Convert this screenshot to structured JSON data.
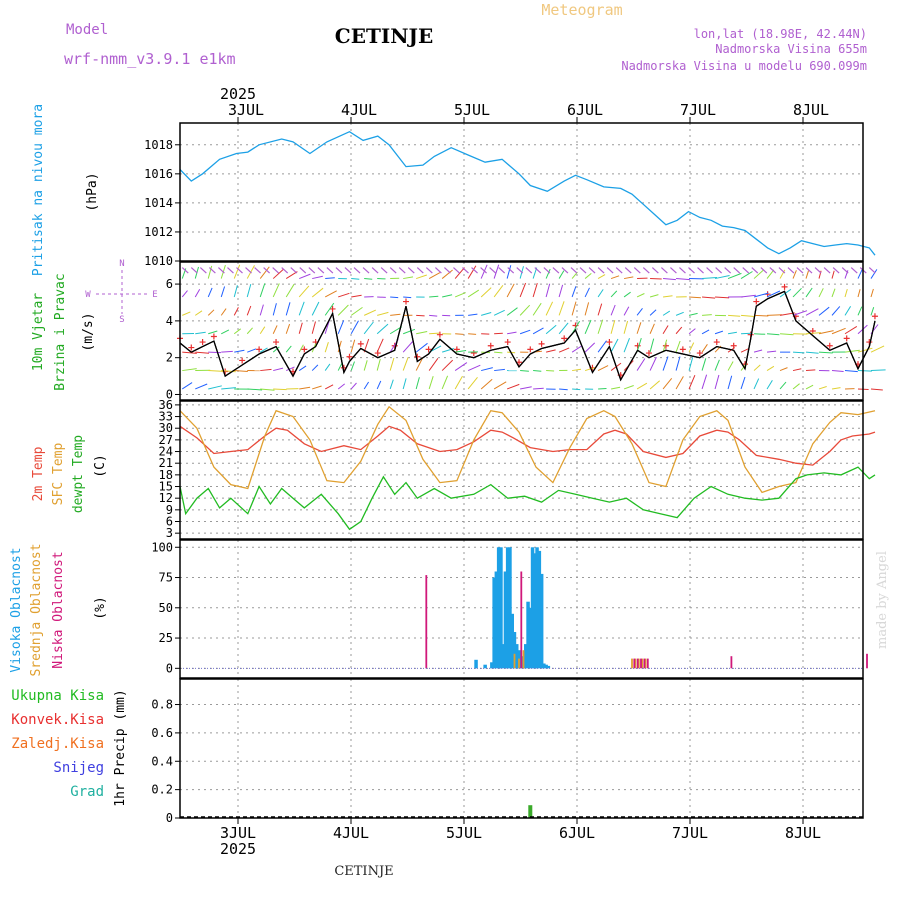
{
  "header": {
    "model_label": "Model",
    "model_name": "wrf-nmm_v3.9.1 e1km",
    "station": "CETINJE",
    "product": "Meteogram",
    "location": "lon,lat (18.98E, 42.44N)",
    "elevation": "Nadmorska Visina 655m",
    "model_elevation": "Nadmorska Visina u modelu 690.099m",
    "year_top": "2025",
    "year_bottom": "2025",
    "footer_station": "CETINJE",
    "credit": "made by Angel"
  },
  "days": [
    "3JUL",
    "4JUL",
    "5JUL",
    "6JUL",
    "7JUL",
    "8JUL"
  ],
  "colors": {
    "pressure": "#1ca0e6",
    "wind_black": "#000000",
    "wind_red": "#e83030",
    "temp2m": "#e84a3a",
    "sfc": "#e0a030",
    "dew": "#22bb22",
    "high_cloud": "#1ca0e6",
    "mid_cloud": "#e0a030",
    "low_cloud": "#d0187a",
    "precip": "#3aaa2a",
    "purple": "#b060d0"
  },
  "panels": {
    "pressure": {
      "label": "Pritisak na nivou mora",
      "unit": "(hPa)",
      "ticks": [
        "1010",
        "1012",
        "1014",
        "1016",
        "1018"
      ]
    },
    "wind": {
      "label1": "10m Vjetar",
      "label2": "Brzina i Pravac",
      "unit": "(m/s)",
      "compass_n": "N",
      "compass_s": "S",
      "compass_w": "W",
      "compass_e": "E",
      "ticks": [
        "0",
        "2",
        "4",
        "6"
      ]
    },
    "temp": {
      "label1": "2m Temp",
      "label2": "SFC Temp",
      "label3": "dewpt Temp",
      "unit": "(C)",
      "ticks": [
        "3",
        "6",
        "9",
        "12",
        "15",
        "18",
        "21",
        "24",
        "27",
        "30",
        "33",
        "36"
      ]
    },
    "cloud": {
      "label1": "Visoka Oblacnost",
      "label2": "Srednja Oblacnost",
      "label3": "Niska Oblacnost",
      "unit": "(%)",
      "ticks": [
        "0",
        "25",
        "50",
        "75",
        "100"
      ]
    },
    "precip": {
      "label": "1hr Precip (mm)",
      "legend": [
        "Ukupna Kisa",
        "Konvek.Kisa",
        "Zaledj.Kisa",
        "Snijeg",
        "Grad"
      ],
      "legend_colors": [
        "#22bb22",
        "#e83030",
        "#f07020",
        "#4040e0",
        "#20b0a0"
      ],
      "ticks": [
        "0",
        "0.2",
        "0.4",
        "0.6",
        "0.8"
      ]
    }
  },
  "chart_data": [
    {
      "type": "line",
      "title": "Pritisak na nivou mora",
      "ylabel": "(hPa)",
      "ylim": [
        1010,
        1019.5
      ],
      "x_unit": "days since 2 JUL 2025 12:00",
      "series": [
        {
          "name": "Pritisak na nivou mora",
          "x": [
            0,
            0.1,
            0.2,
            0.35,
            0.5,
            0.6,
            0.7,
            0.9,
            1.0,
            1.15,
            1.3,
            1.5,
            1.62,
            1.75,
            1.85,
            2.0,
            2.15,
            2.25,
            2.4,
            2.55,
            2.7,
            2.85,
            3.0,
            3.1,
            3.25,
            3.4,
            3.5,
            3.6,
            3.75,
            3.9,
            4.0,
            4.1,
            4.2,
            4.3,
            4.4,
            4.5,
            4.6,
            4.7,
            4.8,
            4.9,
            5.0,
            5.1,
            5.2,
            5.3,
            5.4,
            5.5,
            5.6,
            5.7,
            5.8,
            5.9,
            6.0,
            6.1,
            6.15
          ],
          "y": [
            1016.3,
            1015.5,
            1016.0,
            1017.0,
            1017.4,
            1017.5,
            1018.0,
            1018.4,
            1018.2,
            1017.4,
            1018.2,
            1018.9,
            1018.3,
            1018.6,
            1018.0,
            1016.5,
            1016.6,
            1017.2,
            1017.8,
            1017.3,
            1016.8,
            1017.0,
            1016.0,
            1015.2,
            1014.8,
            1015.5,
            1015.9,
            1015.6,
            1015.1,
            1015.0,
            1014.6,
            1013.9,
            1013.2,
            1012.5,
            1012.8,
            1013.4,
            1013.0,
            1012.8,
            1012.4,
            1012.3,
            1012.1,
            1011.5,
            1010.9,
            1010.5,
            1010.9,
            1011.4,
            1011.2,
            1011.0,
            1011.1,
            1011.2,
            1011.1,
            1010.9,
            1010.4
          ]
        }
      ]
    },
    {
      "type": "line",
      "title": "10m Vjetar Brzina i Pravac",
      "ylabel": "(m/s)",
      "ylim": [
        -0.3,
        7.2
      ],
      "x_unit": "days since 2 JUL 2025 12:00",
      "series": [
        {
          "name": "Brzina",
          "x": [
            0,
            0.1,
            0.2,
            0.3,
            0.4,
            0.55,
            0.7,
            0.85,
            1.0,
            1.1,
            1.2,
            1.35,
            1.45,
            1.5,
            1.6,
            1.75,
            1.9,
            2.0,
            2.1,
            2.2,
            2.3,
            2.45,
            2.6,
            2.75,
            2.9,
            3.0,
            3.1,
            3.2,
            3.4,
            3.5,
            3.65,
            3.8,
            3.9,
            4.05,
            4.15,
            4.3,
            4.45,
            4.6,
            4.75,
            4.9,
            5.0,
            5.05,
            5.1,
            5.2,
            5.35,
            5.45,
            5.6,
            5.75,
            5.9,
            6.0,
            6.1,
            6.15
          ],
          "y": [
            2.8,
            2.3,
            2.6,
            2.9,
            1.0,
            1.6,
            2.2,
            2.6,
            1.0,
            2.2,
            2.6,
            4.4,
            1.2,
            1.8,
            2.5,
            2.0,
            2.4,
            4.8,
            1.8,
            2.2,
            3.0,
            2.2,
            2.0,
            2.4,
            2.6,
            1.5,
            2.2,
            2.5,
            2.8,
            3.5,
            1.2,
            2.6,
            0.8,
            2.4,
            2.0,
            2.4,
            2.2,
            2.0,
            2.6,
            2.4,
            1.4,
            3.0,
            4.8,
            5.2,
            5.6,
            4.0,
            3.2,
            2.4,
            2.8,
            1.4,
            2.6,
            4.0
          ]
        }
      ]
    },
    {
      "type": "line",
      "title": "2m Temp / SFC Temp / dewpt Temp",
      "ylabel": "(C)",
      "ylim": [
        1.5,
        37
      ],
      "x_unit": "days since 2 JUL 2025 12:00",
      "series": [
        {
          "name": "2m Temp",
          "x": [
            0,
            0.15,
            0.3,
            0.45,
            0.6,
            0.75,
            0.85,
            0.95,
            1.1,
            1.25,
            1.45,
            1.6,
            1.75,
            1.85,
            1.95,
            2.1,
            2.3,
            2.45,
            2.6,
            2.75,
            2.85,
            2.95,
            3.1,
            3.3,
            3.45,
            3.6,
            3.75,
            3.85,
            3.95,
            4.1,
            4.3,
            4.45,
            4.6,
            4.75,
            4.85,
            4.95,
            5.1,
            5.3,
            5.45,
            5.6,
            5.75,
            5.85,
            5.95,
            6.1,
            6.15
          ],
          "y": [
            30.5,
            27.5,
            23.5,
            24.0,
            24.5,
            28.0,
            30.0,
            29.5,
            26.0,
            24.0,
            25.5,
            24.5,
            28.0,
            30.5,
            29.5,
            26.0,
            24.0,
            24.5,
            26.5,
            29.5,
            29.0,
            27.5,
            25.0,
            24.0,
            24.5,
            24.5,
            28.5,
            29.5,
            28.5,
            24.0,
            22.5,
            23.5,
            28.0,
            29.5,
            29.0,
            27.0,
            23.0,
            22.0,
            21.0,
            20.5,
            24.0,
            27.0,
            28.0,
            28.5,
            29.0
          ]
        },
        {
          "name": "SFC Temp",
          "x": [
            0,
            0.15,
            0.3,
            0.45,
            0.6,
            0.75,
            0.85,
            1.0,
            1.15,
            1.3,
            1.45,
            1.6,
            1.75,
            1.85,
            2.0,
            2.15,
            2.3,
            2.45,
            2.6,
            2.75,
            2.85,
            3.0,
            3.15,
            3.3,
            3.45,
            3.6,
            3.75,
            3.85,
            4.0,
            4.15,
            4.3,
            4.45,
            4.6,
            4.75,
            4.85,
            5.0,
            5.15,
            5.3,
            5.45,
            5.6,
            5.75,
            5.85,
            6.0,
            6.15
          ],
          "y": [
            34.5,
            30.0,
            20.0,
            15.5,
            14.5,
            28.0,
            34.5,
            33.0,
            27.0,
            16.5,
            16.0,
            21.5,
            31.0,
            35.5,
            32.0,
            22.0,
            16.0,
            16.5,
            27.0,
            34.5,
            34.0,
            29.0,
            20.0,
            16.0,
            25.0,
            32.5,
            34.5,
            33.0,
            26.0,
            16.0,
            15.0,
            27.0,
            33.0,
            34.5,
            32.0,
            20.0,
            13.5,
            15.0,
            16.0,
            26.0,
            31.5,
            34.0,
            33.5,
            34.5
          ]
        },
        {
          "name": "dewpt Temp",
          "x": [
            0,
            0.05,
            0.15,
            0.25,
            0.35,
            0.45,
            0.6,
            0.7,
            0.8,
            0.9,
            1.0,
            1.1,
            1.25,
            1.4,
            1.5,
            1.6,
            1.7,
            1.8,
            1.9,
            2.0,
            2.1,
            2.25,
            2.4,
            2.6,
            2.75,
            2.9,
            3.05,
            3.2,
            3.35,
            3.5,
            3.65,
            3.8,
            3.95,
            4.1,
            4.25,
            4.4,
            4.55,
            4.7,
            4.85,
            5.0,
            5.15,
            5.3,
            5.45,
            5.55,
            5.7,
            5.85,
            6.0,
            6.1,
            6.15
          ],
          "y": [
            15.0,
            8.0,
            12.0,
            14.5,
            9.5,
            12.0,
            8.0,
            15.0,
            10.5,
            14.5,
            12.0,
            9.5,
            13.0,
            8.0,
            4.0,
            6.0,
            12.0,
            17.5,
            13.0,
            16.0,
            12.0,
            14.5,
            12.0,
            13.0,
            15.5,
            12.0,
            12.5,
            11.0,
            14.0,
            13.0,
            12.0,
            11.0,
            12.0,
            9.0,
            8.0,
            7.0,
            12.0,
            15.0,
            13.0,
            12.0,
            11.5,
            12.0,
            17.0,
            18.0,
            18.5,
            18.0,
            20.0,
            17.0,
            18.0
          ]
        }
      ]
    },
    {
      "type": "bar",
      "title": "Oblacnost",
      "ylabel": "(%)",
      "ylim": [
        -8,
        106
      ],
      "x_unit": "days since 2 JUL 2025 12:00",
      "series": [
        {
          "name": "Visoka Oblacnost",
          "x": [
            2.62,
            2.7,
            2.76,
            2.78,
            2.8,
            2.82,
            2.84,
            2.86,
            2.88,
            2.9,
            2.92,
            2.94,
            2.96,
            2.98,
            3.0,
            3.02,
            3.04,
            3.06,
            3.08,
            3.1,
            3.12,
            3.14,
            3.16,
            3.18,
            3.2,
            3.22,
            3.24,
            3.26
          ],
          "y": [
            7,
            3,
            5,
            75,
            80,
            100,
            100,
            20,
            80,
            100,
            100,
            45,
            30,
            20,
            15,
            10,
            5,
            20,
            55,
            50,
            100,
            95,
            100,
            97,
            78,
            4,
            3,
            2
          ]
        },
        {
          "name": "Srednja Oblacnost",
          "x": [
            2.96,
            3.0,
            3.04,
            4.0,
            4.03,
            4.06,
            4.09,
            4.12
          ],
          "y": [
            12,
            8,
            15,
            8,
            8,
            8,
            8,
            8
          ]
        },
        {
          "name": "Niska Oblacnost",
          "x": [
            2.18,
            3.02,
            4.02,
            4.05,
            4.08,
            4.11,
            4.14,
            4.88,
            6.08
          ],
          "y": [
            77,
            80,
            8,
            8,
            8,
            8,
            8,
            10,
            12
          ]
        }
      ]
    },
    {
      "type": "bar",
      "title": "1hr Precip (mm)",
      "ylabel": "1hr Precip (mm)",
      "ylim": [
        0,
        0.98
      ],
      "x_unit": "days since 2 JUL 2025 12:00",
      "series": [
        {
          "name": "Ukupna Kisa",
          "x": [
            3.1
          ],
          "y": [
            0.09
          ]
        }
      ]
    }
  ]
}
